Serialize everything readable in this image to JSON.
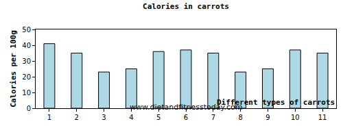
{
  "chart_data": {
    "type": "bar",
    "title": "Calories in carrots",
    "subtitle": "www.dietandfitnesstoday.com",
    "x_label": "Different types of carrots",
    "y_label": "Calories per 100g",
    "categories": [
      "1",
      "2",
      "3",
      "4",
      "5",
      "6",
      "7",
      "8",
      "9",
      "10",
      "11"
    ],
    "values": [
      41,
      35,
      23,
      25,
      36,
      37,
      35,
      23,
      25,
      37,
      35
    ],
    "color": "#add8e6",
    "ylim": [
      0,
      50
    ],
    "yticks": [
      0,
      10,
      20,
      30,
      40,
      50
    ],
    "grid": false
  }
}
